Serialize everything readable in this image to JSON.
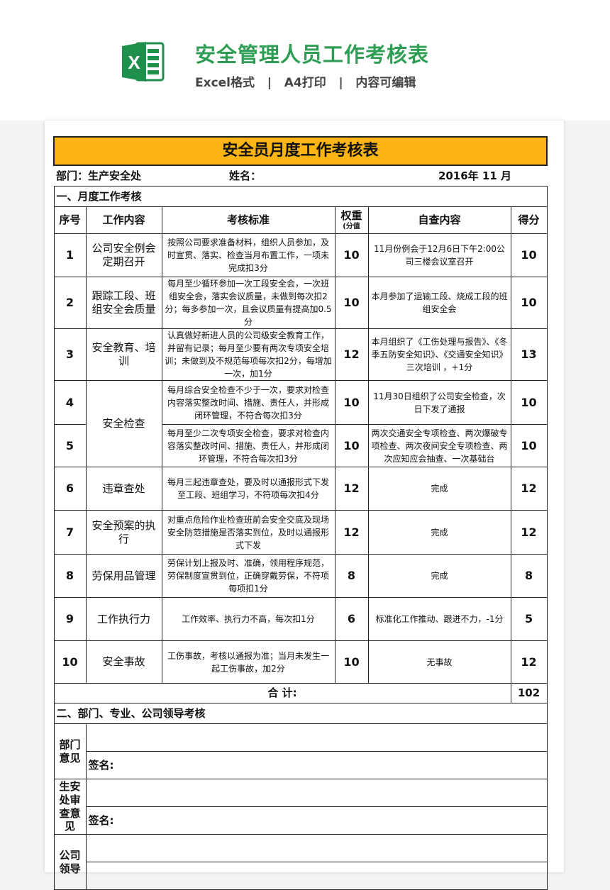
{
  "header": {
    "app_icon": "excel-icon",
    "title": "安全管理人员工作考核表",
    "subtitle": "Excel格式   |   A4打印   |   内容可编辑"
  },
  "colors": {
    "title_green": "#2f9e55",
    "banner_yellow": "#fdb515",
    "excel_green": "#1f8f4c"
  },
  "sheet": {
    "title": "安全员月度工作考核表",
    "dept": "部门：生产安全处",
    "name": "姓名：",
    "date": "2016年  11  月",
    "section1": "一、月度工作考核",
    "columns": [
      "序号",
      "工作内容",
      "考核标准",
      "权重",
      "(分值",
      "自查内容",
      "得分"
    ],
    "rows": [
      {
        "no": "1",
        "item": "公司安全例会定期召开",
        "criteria": "按照公司要求准备材料，组织人员参加，及时宣贯、落实、检查当月布置工作，一项未完成扣3分",
        "weight": "10",
        "self": "11月份例会于12月6日下午2:00公司三楼会议室召开",
        "score": "10"
      },
      {
        "no": "2",
        "item": "跟踪工段、班组安全会质量",
        "criteria": "每月至少循环参加一次工段安全会，一次班组安全会，落实会议质量，未做到每次扣2分；每多参加一次，且会议质量有提高加0.5分",
        "weight": "10",
        "self": "本月参加了运输工段、烧成工段的班组安全会",
        "score": "10"
      },
      {
        "no": "3",
        "item": "安全教育、培训",
        "criteria": "认真做好新进人员的公司级安全教育工作，并留有记录；每月至少要有两次专项安全培训；未做到及不规范每项每次扣2分，每增加一次，加1分",
        "weight": "12",
        "self": "本月组织了《工伤处理与报告》、《冬季五防安全知识》、《交通安全知识》三次培训 ，+1分",
        "score": "13"
      },
      {
        "no": "4",
        "item": "安全检查",
        "criteria": "每月综合安全检查不少于一次，要求对检查内容落实整改时间、措施、责任人，并形成闭环管理，不符合每次扣3分",
        "weight": "10",
        "self": "11月30日组织了公司安全检查，次日下发了通报",
        "score": "10"
      },
      {
        "no": "5",
        "item": "",
        "criteria": "每月至少二次专项安全检查，要求对检查内容落实整改时间、措施、责任人，并形成闭环管理，不符合每次扣3分",
        "weight": "10",
        "self": "两次交通安全专项检查、两次爆破专项检查、两次夜间安全专项检查、两次应知应会抽查、一次基础台",
        "score": "10"
      },
      {
        "no": "6",
        "item": "违章查处",
        "criteria": "每月三起违章查处，要及时以通报形式下发至工段、班组学习，不符项每次扣4分",
        "weight": "12",
        "self": "完成",
        "score": "12"
      },
      {
        "no": "7",
        "item": "安全预案的执行",
        "criteria": "对重点危险作业检查班前会安全交底及现场安全防范措施是否落实到位，及时以通报形式下发",
        "weight": "12",
        "self": "完成",
        "score": "12"
      },
      {
        "no": "8",
        "item": "劳保用品管理",
        "criteria": "劳保计划上报及时、准确，领用程序规范，劳保制度宣贯到位，正确穿戴劳保，不符项每项扣1分",
        "weight": "8",
        "self": "完成",
        "score": "8"
      },
      {
        "no": "9",
        "item": "工作执行力",
        "criteria": "工作效率、执行力不高，每次扣1分",
        "weight": "6",
        "self": "标准化工作推动、跟进不力，-1分",
        "score": "5"
      },
      {
        "no": "10",
        "item": "安全事故",
        "criteria": "工伤事故，考核以通报为准；当月未发生一起工伤事故，加2分",
        "weight": "10",
        "self": "无事故",
        "score": "12"
      }
    ],
    "total_label": "合    计:",
    "total": "102",
    "section2": "二、部门、专业、公司领导考核",
    "reviews": [
      {
        "label": "部门意见",
        "sign": "签名:"
      },
      {
        "label": "生安处审查意见",
        "sign": "签名:"
      },
      {
        "label": "公司领导",
        "sign": ""
      }
    ]
  }
}
